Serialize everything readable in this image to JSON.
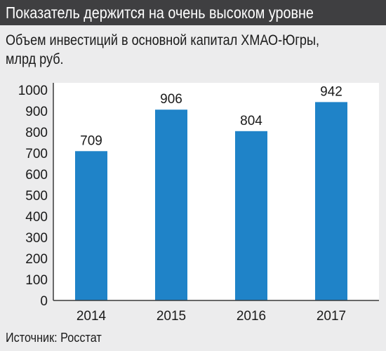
{
  "header": {
    "title": "Показатель держится на очень высоком уровне"
  },
  "chart_data": {
    "type": "bar",
    "title": "Объем инвестиций в основной капитал ХМАО-Югры,",
    "subtitle": "млрд руб.",
    "categories": [
      "2014",
      "2015",
      "2016",
      "2017"
    ],
    "values": [
      709,
      906,
      804,
      942
    ],
    "data_labels": [
      "709",
      "906",
      "804",
      "942"
    ],
    "y_ticks": [
      "0",
      "100",
      "200",
      "300",
      "400",
      "500",
      "600",
      "700",
      "800",
      "900",
      "1000"
    ],
    "ylim": [
      0,
      1000
    ],
    "grid": false,
    "legend": "none",
    "bar_color": "#1f83c8"
  },
  "footer": {
    "source": "Источник: Росстат"
  }
}
